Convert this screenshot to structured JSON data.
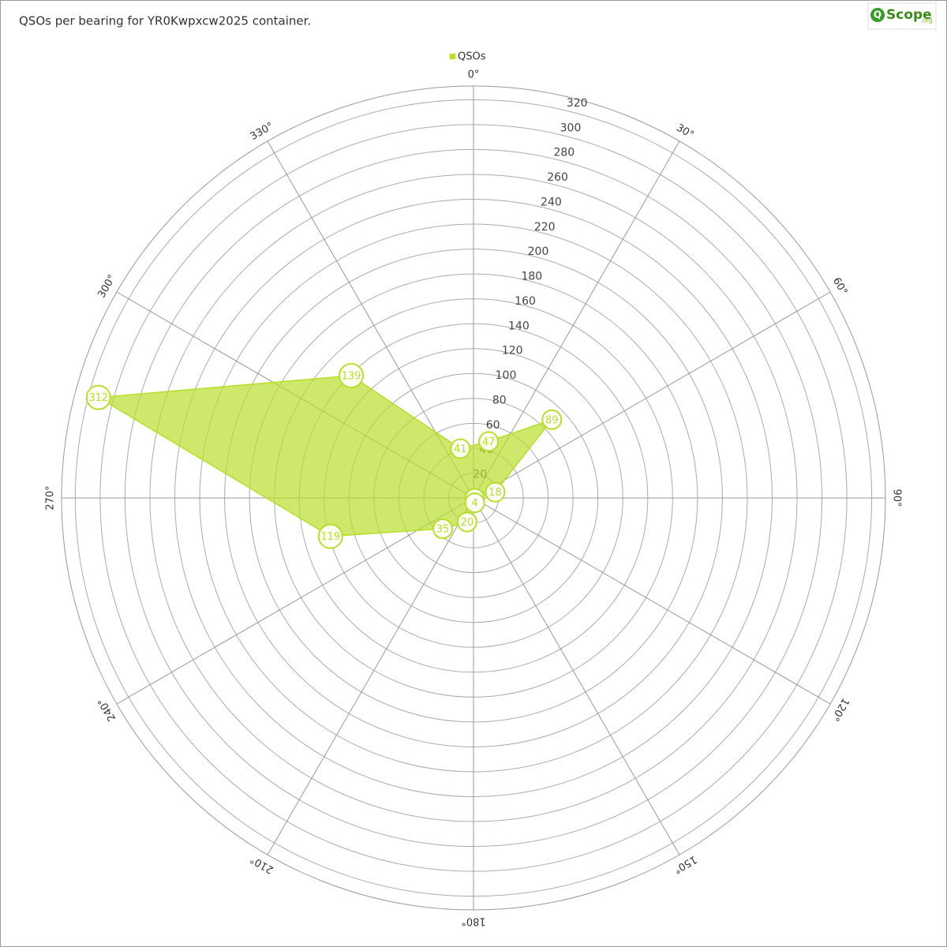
{
  "chart_data": {
    "type": "polar",
    "title": "QSOs per bearing for YR0Kwpxcw2025 container.",
    "logo": {
      "mark": "Q",
      "name": "Scope",
      "suffix": ".org"
    },
    "series": [
      {
        "name": "QSOs",
        "color": "#b8de2c",
        "theta": [
          15,
          45,
          75,
          105,
          135,
          165,
          195,
          225,
          255,
          285,
          315,
          345
        ],
        "values": [
          47,
          89,
          18,
          1,
          null,
          4,
          20,
          35,
          119,
          312,
          139,
          41
        ]
      }
    ],
    "ylim": [
      0,
      331
    ],
    "yticks": [
      20,
      40,
      60,
      80,
      100,
      120,
      140,
      160,
      180,
      200,
      220,
      240,
      260,
      280,
      300,
      320
    ],
    "xticks": [
      {
        "value": 0,
        "label": "0°"
      },
      {
        "value": 30,
        "label": "30°"
      },
      {
        "value": 60,
        "label": "60°"
      },
      {
        "value": 90,
        "label": "90°"
      },
      {
        "value": 120,
        "label": "120°"
      },
      {
        "value": 150,
        "label": "150°"
      },
      {
        "value": 180,
        "label": "180°"
      },
      {
        "value": 210,
        "label": "210°"
      },
      {
        "value": 240,
        "label": "240°"
      },
      {
        "value": 270,
        "label": "270°"
      },
      {
        "value": 300,
        "label": "300°"
      },
      {
        "value": 330,
        "label": "330°"
      }
    ],
    "grid": true,
    "legend": "top"
  }
}
